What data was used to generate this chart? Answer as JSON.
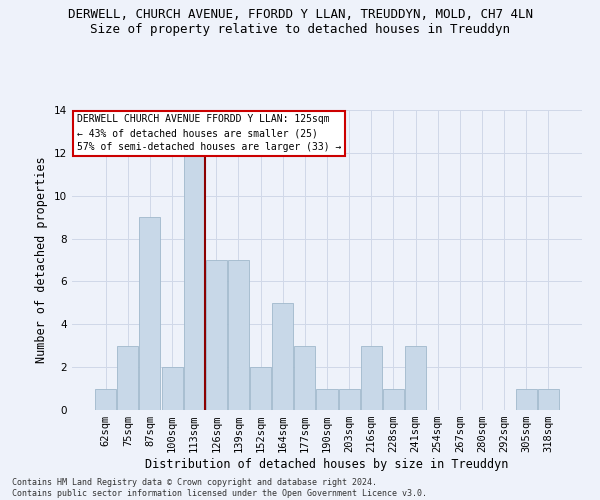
{
  "title_line1": "DERWELL, CHURCH AVENUE, FFORDD Y LLAN, TREUDDYN, MOLD, CH7 4LN",
  "title_line2": "Size of property relative to detached houses in Treuddyn",
  "xlabel": "Distribution of detached houses by size in Treuddyn",
  "ylabel": "Number of detached properties",
  "categories": [
    "62sqm",
    "75sqm",
    "87sqm",
    "100sqm",
    "113sqm",
    "126sqm",
    "139sqm",
    "152sqm",
    "164sqm",
    "177sqm",
    "190sqm",
    "203sqm",
    "216sqm",
    "228sqm",
    "241sqm",
    "254sqm",
    "267sqm",
    "280sqm",
    "292sqm",
    "305sqm",
    "318sqm"
  ],
  "values": [
    1,
    3,
    9,
    2,
    12,
    7,
    7,
    2,
    5,
    3,
    1,
    1,
    3,
    1,
    3,
    0,
    0,
    0,
    0,
    1,
    1
  ],
  "bar_color": "#c8d8e8",
  "bar_edge_color": "#a0b8cc",
  "vline_x": 4.5,
  "vline_color": "#8b0000",
  "annotation_text": "DERWELL CHURCH AVENUE FFORDD Y LLAN: 125sqm\n← 43% of detached houses are smaller (25)\n57% of semi-detached houses are larger (33) →",
  "annotation_box_color": "white",
  "annotation_box_edge_color": "#cc0000",
  "ylim": [
    0,
    14
  ],
  "yticks": [
    0,
    2,
    4,
    6,
    8,
    10,
    12,
    14
  ],
  "grid_color": "#d0d8e8",
  "background_color": "#eef2fa",
  "footer_text": "Contains HM Land Registry data © Crown copyright and database right 2024.\nContains public sector information licensed under the Open Government Licence v3.0.",
  "title_fontsize": 9,
  "subtitle_fontsize": 9,
  "tick_fontsize": 7.5,
  "ylabel_fontsize": 8.5,
  "xlabel_fontsize": 8.5,
  "annotation_fontsize": 7,
  "footer_fontsize": 6
}
